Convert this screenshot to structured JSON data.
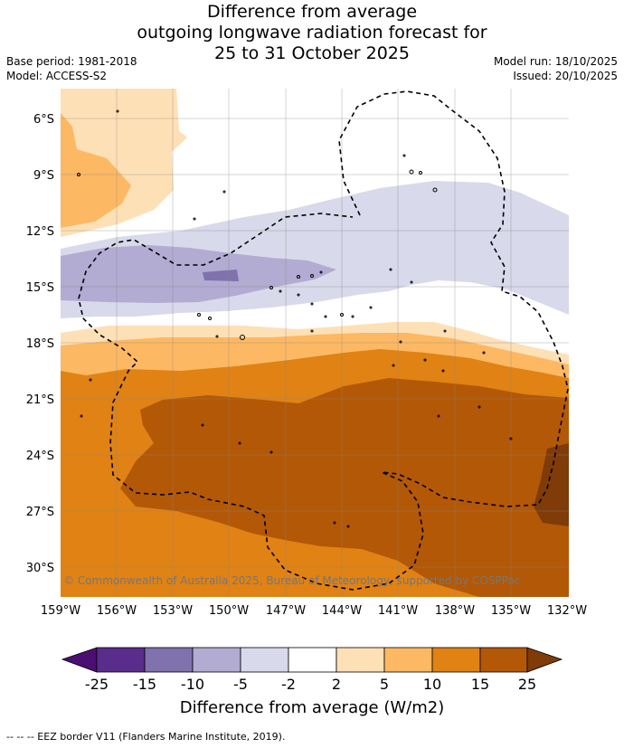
{
  "title": {
    "line1": "Difference from average",
    "line2": "outgoing longwave radiation forecast for",
    "line3": "25 to 31 October 2025"
  },
  "meta": {
    "base_period": "Base period: 1981-2018",
    "model": "Model: ACCESS-S2",
    "model_run": "Model run: 18/10/2025",
    "issued": "Issued: 20/10/2025"
  },
  "map": {
    "lat_labels": [
      "6°S",
      "9°S",
      "12°S",
      "15°S",
      "18°S",
      "21°S",
      "24°S",
      "27°S",
      "30°S"
    ],
    "lon_labels": [
      "159°W",
      "156°W",
      "153°W",
      "150°W",
      "147°W",
      "144°W",
      "141°W",
      "138°W",
      "135°W",
      "132°W"
    ],
    "copyright": "© Commonwealth of Australia 2025, Bureau of Meteorology, supported by COSPPac"
  },
  "legend": {
    "title": "Difference from average (W/m2)",
    "ticks": [
      "-25",
      "-15",
      "-10",
      "-5",
      "-2",
      "2",
      "5",
      "10",
      "15",
      "25"
    ],
    "colors": [
      "#4b0f73",
      "#5a2d8c",
      "#8072ad",
      "#b2abd2",
      "#d8d9ea",
      "#ffffff",
      "#fee0b6",
      "#fdb863",
      "#e08214",
      "#b35806",
      "#7f3b08"
    ]
  },
  "footer": {
    "eez_text": "--  --  -- EEZ border V11 (Flanders Marine Institute, 2019)."
  }
}
